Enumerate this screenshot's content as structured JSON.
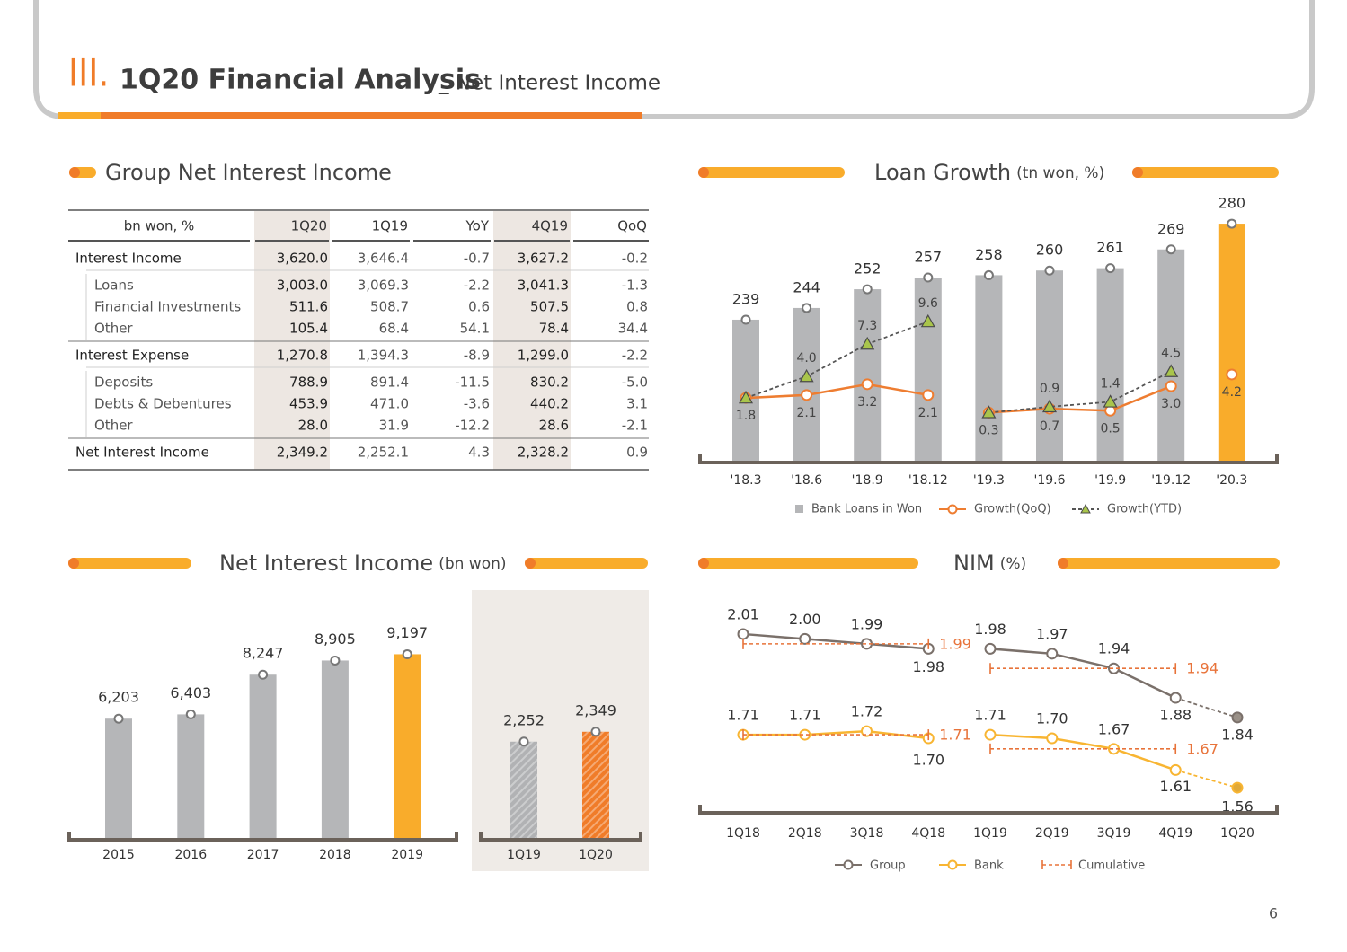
{
  "header": {
    "section": "III.",
    "title": "1Q20 Financial Analysis",
    "subtitle": "_ Net Interest Income"
  },
  "table": {
    "title": "Group Net Interest Income",
    "columns": [
      "bn won, %",
      "1Q20",
      "1Q19",
      "YoY",
      "4Q19",
      "QoQ"
    ],
    "highlight_columns": [
      1,
      4
    ],
    "rows": [
      {
        "label": "Interest Income",
        "indent": false,
        "values": [
          "3,620.0",
          "3,646.4",
          "-0.7",
          "3,627.2",
          "-0.2"
        ]
      },
      {
        "label": "Loans",
        "indent": true,
        "values": [
          "3,003.0",
          "3,069.3",
          "-2.2",
          "3,041.3",
          "-1.3"
        ]
      },
      {
        "label": "Financial Investments",
        "indent": true,
        "values": [
          "511.6",
          "508.7",
          "0.6",
          "507.5",
          "0.8"
        ]
      },
      {
        "label": "Other",
        "indent": true,
        "values": [
          "105.4",
          "68.4",
          "54.1",
          "78.4",
          "34.4"
        ]
      },
      {
        "label": "Interest Expense",
        "indent": false,
        "values": [
          "1,270.8",
          "1,394.3",
          "-8.9",
          "1,299.0",
          "-2.2"
        ]
      },
      {
        "label": "Deposits",
        "indent": true,
        "values": [
          "788.9",
          "891.4",
          "-11.5",
          "830.2",
          "-5.0"
        ]
      },
      {
        "label": "Debts & Debentures",
        "indent": true,
        "values": [
          "453.9",
          "471.0",
          "-3.6",
          "440.2",
          "3.1"
        ]
      },
      {
        "label": "Other",
        "indent": true,
        "values": [
          "28.0",
          "31.9",
          "-12.2",
          "28.6",
          "-2.1"
        ]
      },
      {
        "label": "Net Interest Income",
        "indent": false,
        "values": [
          "2,349.2",
          "2,252.1",
          "4.3",
          "2,328.2",
          "0.9"
        ]
      }
    ]
  },
  "chart_data": [
    {
      "type": "combo",
      "title": "Loan Growth",
      "unit": "(tn won, %)",
      "categories": [
        "'18.3",
        "'18.6",
        "'18.9",
        "'18.12",
        "'19.3",
        "'19.6",
        "'19.9",
        "'19.12",
        "'20.3"
      ],
      "ylim": [
        178,
        290
      ],
      "y2lim": [
        -4.8,
        22
      ],
      "series": [
        {
          "name": "Bank Loans in Won",
          "type": "bar",
          "colors": [
            "#b5b6b8",
            "#b5b6b8",
            "#b5b6b8",
            "#b5b6b8",
            "#b5b6b8",
            "#b5b6b8",
            "#b5b6b8",
            "#b5b6b8",
            "#f9ac2b"
          ],
          "values": [
            239,
            244,
            252,
            257,
            258,
            260,
            261,
            269,
            280
          ]
        },
        {
          "name": "Growth(QoQ)",
          "type": "line",
          "axis": "y2",
          "color": "#ee7d31",
          "values": [
            1.8,
            2.1,
            3.2,
            2.1,
            0.3,
            0.7,
            0.5,
            3.0,
            4.2
          ],
          "value_labels": [
            "1.8",
            "2.1",
            "3.2",
            "2.1",
            "0.3",
            "0.7",
            "0.5",
            "3.0",
            "4.2"
          ]
        },
        {
          "name": "Growth(YTD)",
          "type": "line",
          "axis": "y2",
          "color": "#555555",
          "marker_color": "#a9c54b",
          "values": [
            1.8,
            4.0,
            7.3,
            9.6,
            0.3,
            0.9,
            1.4,
            4.5,
            null
          ],
          "value_labels": [
            null,
            "4.0",
            "7.3",
            "9.6",
            null,
            "0.9",
            "1.4",
            "4.5",
            null
          ]
        }
      ]
    },
    {
      "type": "bar",
      "title": "Net Interest Income",
      "unit": "(bn won)",
      "categories": [
        "2015",
        "2016",
        "2017",
        "2018",
        "2019"
      ],
      "values": [
        6203,
        6403,
        8247,
        8905,
        9197
      ],
      "value_labels": [
        "6,203",
        "6,403",
        "8,247",
        "8,905",
        "9,197"
      ],
      "colors": [
        "#b5b6b8",
        "#b5b6b8",
        "#b5b6b8",
        "#b5b6b8",
        "#f9ac2b"
      ],
      "ylim": [
        578,
        9800
      ]
    },
    {
      "type": "bar",
      "categories": [
        "1Q19",
        "1Q20"
      ],
      "values": [
        2252,
        2349
      ],
      "value_labels": [
        "2,252",
        "2,349"
      ],
      "colors": [
        "#b1b2b4",
        "#f07c29"
      ],
      "ylim": [
        1288,
        2400
      ],
      "hatched": true
    },
    {
      "type": "line",
      "title": "NIM",
      "unit": "(%)",
      "categories": [
        "1Q18",
        "2Q18",
        "3Q18",
        "4Q18",
        "1Q19",
        "2Q19",
        "3Q19",
        "4Q19",
        "1Q20"
      ],
      "ylim": [
        1.646,
        2.094
      ],
      "y2lim": [
        1.489,
        2.112
      ],
      "series": [
        {
          "name": "Group",
          "color": "#7a706a",
          "values": [
            2.01,
            2.0,
            1.99,
            1.98,
            1.98,
            1.97,
            1.94,
            1.88,
            1.84
          ],
          "value_labels": [
            "2.01",
            "2.00",
            "1.99",
            "1.98",
            "1.98",
            "1.97",
            "1.94",
            "1.88",
            "1.84"
          ]
        },
        {
          "name": "Bank",
          "axis": "y2",
          "color": "#f8b532",
          "values": [
            1.71,
            1.71,
            1.72,
            1.7,
            1.71,
            1.7,
            1.67,
            1.61,
            1.56
          ],
          "value_labels": [
            "1.71",
            "1.71",
            "1.72",
            "1.70",
            "1.71",
            "1.70",
            "1.67",
            "1.61",
            "1.56"
          ]
        }
      ],
      "cumulative": {
        "name": "Cumulative",
        "color": "#e8733a",
        "group": [
          1.99,
          1.94
        ],
        "bank": [
          1.71,
          1.67
        ]
      }
    }
  ],
  "page_number": 6
}
